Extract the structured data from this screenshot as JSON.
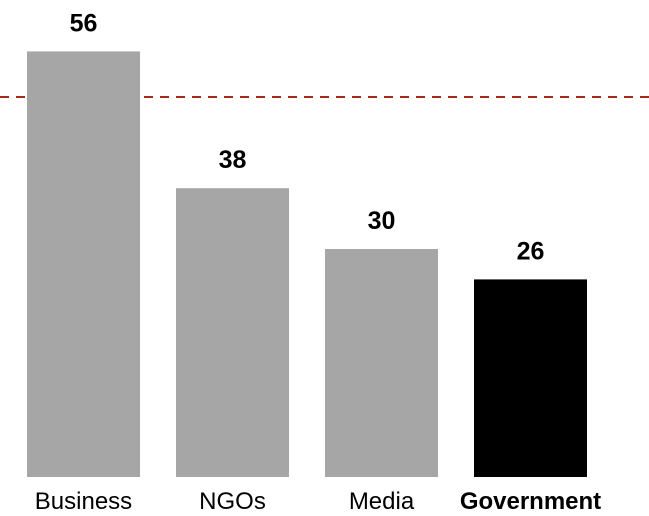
{
  "chart_data": {
    "type": "bar",
    "categories": [
      "Business",
      "NGOs",
      "Media",
      "Government"
    ],
    "values": [
      56,
      38,
      30,
      26
    ],
    "highlighted_category": "Government",
    "reference_line": 50,
    "ylim": [
      0,
      60
    ],
    "grid": false,
    "legend": "none",
    "title": "",
    "xlabel": "",
    "ylabel": "",
    "colors": {
      "bar": "#a6a6a6",
      "highlight_bar": "#000000",
      "reference_line": "#a52a1a",
      "text": "#000000"
    }
  }
}
